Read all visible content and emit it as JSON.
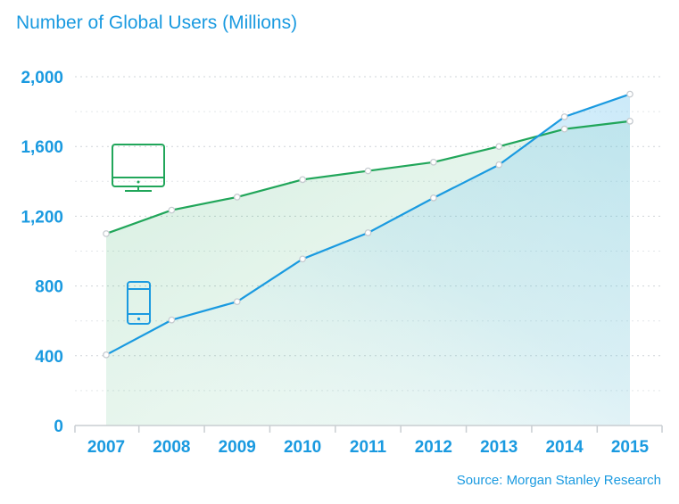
{
  "chart_data": {
    "type": "area",
    "title": "Number of Global Users (Millions)",
    "source": "Source: Morgan Stanley Research",
    "categories": [
      "2007",
      "2008",
      "2009",
      "2010",
      "2011",
      "2012",
      "2013",
      "2014",
      "2015"
    ],
    "ylim": [
      0,
      2000
    ],
    "yticks": [
      0,
      400,
      800,
      1200,
      1600,
      2000
    ],
    "ytick_labels": [
      "0",
      "400",
      "800",
      "1,200",
      "1,600",
      "2,000"
    ],
    "grid": true,
    "series": [
      {
        "icon": "desktop-icon",
        "color": "#21a65a",
        "values": [
          1100,
          1235,
          1310,
          1410,
          1460,
          1510,
          1600,
          1700,
          1745
        ]
      },
      {
        "icon": "mobile-icon",
        "color": "#1a9ae0",
        "values": [
          405,
          605,
          710,
          955,
          1105,
          1305,
          1495,
          1770,
          1900
        ]
      }
    ]
  }
}
